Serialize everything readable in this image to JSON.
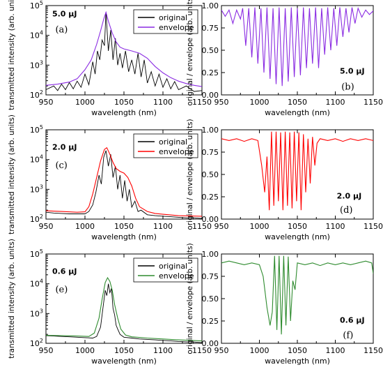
{
  "colors": {
    "original": "#000000",
    "envelope_a": "#8a2be2",
    "envelope_c": "#ff0000",
    "envelope_e": "#2e8b2e"
  },
  "chart_data": [
    {
      "id": "a",
      "type": "line",
      "panel_label": "(a)",
      "energy_label": "5.0 μJ",
      "xlabel": "wavelength (nm)",
      "ylabel": "transmitted intensity (arb. units)",
      "xlim": [
        950,
        1150
      ],
      "ylim": [
        100,
        100000
      ],
      "yscale": "log",
      "x_ticks": [
        "950",
        "1000",
        "1050",
        "1100",
        "1150"
      ],
      "y_ticks": [
        "10^2",
        "10^3",
        "10^4",
        "10^5"
      ],
      "legend": {
        "position": "top-right"
      },
      "series": [
        {
          "name": "original",
          "color": "#000000",
          "x": [
            950,
            960,
            965,
            970,
            975,
            980,
            985,
            990,
            995,
            1000,
            1005,
            1010,
            1013,
            1016,
            1019,
            1022,
            1025,
            1027,
            1030,
            1033,
            1036,
            1039,
            1042,
            1045,
            1048,
            1052,
            1056,
            1060,
            1064,
            1068,
            1072,
            1076,
            1080,
            1085,
            1090,
            1095,
            1100,
            1105,
            1110,
            1115,
            1120,
            1130,
            1140,
            1150
          ],
          "y": [
            150,
            200,
            140,
            230,
            150,
            260,
            160,
            290,
            180,
            500,
            220,
            1300,
            500,
            3000,
            1500,
            7000,
            4500,
            60000,
            3000,
            15000,
            1500,
            8000,
            1000,
            2500,
            800,
            3000,
            600,
            1500,
            500,
            2500,
            400,
            1500,
            250,
            600,
            200,
            500,
            180,
            350,
            160,
            280,
            150,
            200,
            130,
            140
          ]
        },
        {
          "name": "envelope",
          "color": "#8a2be2",
          "x": [
            950,
            965,
            980,
            990,
            1000,
            1008,
            1015,
            1020,
            1024,
            1027,
            1030,
            1035,
            1040,
            1045,
            1050,
            1060,
            1070,
            1080,
            1090,
            1100,
            1110,
            1120,
            1130,
            1140,
            1150
          ],
          "y": [
            210,
            230,
            270,
            350,
            700,
            1500,
            5000,
            14000,
            35000,
            60000,
            30000,
            12000,
            6000,
            4000,
            3500,
            3000,
            2500,
            1700,
            900,
            550,
            380,
            290,
            240,
            210,
            190
          ]
        }
      ]
    },
    {
      "id": "b",
      "type": "line",
      "panel_label": "(b)",
      "energy_label": "5.0 μJ",
      "xlabel": "wavelength (nm)",
      "ylabel": "original / envelope (arb. units)",
      "xlim": [
        950,
        1150
      ],
      "ylim": [
        0,
        1
      ],
      "x_ticks": [
        "950",
        "1000",
        "1050",
        "1100",
        "1150"
      ],
      "y_ticks": [
        "0.00",
        "0.25",
        "0.50",
        "0.75",
        "1.00"
      ],
      "series": [
        {
          "name": "",
          "color": "#8a2be2",
          "x": [
            950,
            955,
            960,
            965,
            970,
            975,
            978,
            982,
            986,
            990,
            994,
            998,
            1002,
            1006,
            1010,
            1014,
            1018,
            1022,
            1026,
            1030,
            1034,
            1038,
            1042,
            1046,
            1050,
            1054,
            1058,
            1062,
            1066,
            1070,
            1074,
            1078,
            1082,
            1086,
            1090,
            1094,
            1098,
            1102,
            1106,
            1110,
            1114,
            1118,
            1122,
            1126,
            1130,
            1135,
            1140,
            1145,
            1150
          ],
          "y": [
            0.95,
            0.88,
            0.95,
            0.8,
            0.95,
            0.85,
            0.97,
            0.55,
            0.97,
            0.42,
            0.98,
            0.35,
            0.97,
            0.25,
            0.98,
            0.18,
            0.97,
            0.12,
            0.98,
            0.1,
            0.97,
            0.15,
            0.98,
            0.2,
            0.97,
            0.22,
            0.98,
            0.3,
            0.97,
            0.35,
            0.98,
            0.3,
            0.97,
            0.45,
            0.98,
            0.5,
            0.97,
            0.55,
            0.98,
            0.65,
            0.97,
            0.7,
            0.98,
            0.8,
            0.97,
            0.87,
            0.95,
            0.9,
            0.94
          ]
        }
      ]
    },
    {
      "id": "c",
      "type": "line",
      "panel_label": "(c)",
      "energy_label": "2.0 μJ",
      "xlabel": "wavelength (nm)",
      "ylabel": "transmitted intensity (arb. units)",
      "xlim": [
        950,
        1150
      ],
      "ylim": [
        100,
        100000
      ],
      "yscale": "log",
      "x_ticks": [
        "950",
        "1000",
        "1050",
        "1100",
        "1150"
      ],
      "y_ticks": [
        "10^2",
        "10^3",
        "10^4",
        "10^5"
      ],
      "legend": {
        "position": "top-right"
      },
      "series": [
        {
          "name": "original",
          "color": "#000000",
          "x": [
            950,
            960,
            970,
            980,
            990,
            1000,
            1005,
            1010,
            1014,
            1018,
            1021,
            1024,
            1027,
            1030,
            1033,
            1036,
            1039,
            1042,
            1045,
            1048,
            1051,
            1054,
            1057,
            1060,
            1064,
            1068,
            1072,
            1080,
            1090,
            1100,
            1110,
            1120,
            1130,
            1140,
            1150
          ],
          "y": [
            170,
            160,
            155,
            150,
            150,
            150,
            180,
            300,
            800,
            3000,
            1500,
            12000,
            20000,
            6000,
            15000,
            2500,
            6000,
            1000,
            3000,
            500,
            2000,
            400,
            1000,
            250,
            400,
            180,
            200,
            140,
            130,
            125,
            120,
            115,
            110,
            110,
            105
          ]
        },
        {
          "name": "envelope",
          "color": "#ff0000",
          "x": [
            950,
            970,
            990,
            1000,
            1005,
            1010,
            1015,
            1020,
            1025,
            1028,
            1032,
            1036,
            1040,
            1045,
            1050,
            1055,
            1060,
            1065,
            1070,
            1080,
            1090,
            1100,
            1120,
            1150
          ],
          "y": [
            190,
            180,
            170,
            175,
            260,
            700,
            2500,
            9000,
            22000,
            25000,
            15000,
            8000,
            5000,
            4000,
            3500,
            2500,
            1300,
            500,
            260,
            180,
            155,
            145,
            130,
            125
          ]
        }
      ]
    },
    {
      "id": "d",
      "type": "line",
      "panel_label": "(d)",
      "energy_label": "2.0 μJ",
      "xlabel": "wavelength (nm)",
      "ylabel": "original / envelope (arb. units)",
      "xlim": [
        950,
        1150
      ],
      "ylim": [
        0,
        1
      ],
      "x_ticks": [
        "950",
        "1000",
        "1050",
        "1100",
        "1150"
      ],
      "y_ticks": [
        "0.00",
        "0.25",
        "0.50",
        "0.75",
        "1.00"
      ],
      "series": [
        {
          "name": "",
          "color": "#ff0000",
          "x": [
            950,
            960,
            970,
            980,
            990,
            998,
            1003,
            1007,
            1010,
            1013,
            1016,
            1019,
            1022,
            1025,
            1028,
            1031,
            1034,
            1037,
            1040,
            1043,
            1046,
            1049,
            1052,
            1055,
            1058,
            1061,
            1064,
            1067,
            1070,
            1073,
            1076,
            1080,
            1090,
            1100,
            1110,
            1120,
            1130,
            1140,
            1150
          ],
          "y": [
            0.9,
            0.88,
            0.9,
            0.87,
            0.9,
            0.88,
            0.6,
            0.3,
            0.7,
            0.1,
            0.98,
            0.15,
            0.98,
            0.2,
            0.97,
            0.1,
            0.98,
            0.15,
            0.97,
            0.12,
            0.98,
            0.2,
            0.97,
            0.1,
            0.95,
            0.3,
            0.9,
            0.4,
            0.92,
            0.6,
            0.85,
            0.9,
            0.88,
            0.9,
            0.87,
            0.9,
            0.88,
            0.9,
            0.88
          ]
        }
      ]
    },
    {
      "id": "e",
      "type": "line",
      "panel_label": "(e)",
      "energy_label": "0.6 μJ",
      "xlabel": "wavelength (nm)",
      "ylabel": "transmitted intensity (arb. units)",
      "xlim": [
        950,
        1150
      ],
      "ylim": [
        100,
        100000
      ],
      "yscale": "log",
      "x_ticks": [
        "950",
        "1000",
        "1050",
        "1100",
        "1150"
      ],
      "y_ticks": [
        "10^2",
        "10^3",
        "10^4",
        "10^5"
      ],
      "legend": {
        "position": "top-right"
      },
      "series": [
        {
          "name": "original",
          "color": "#000000",
          "x": [
            950,
            960,
            970,
            980,
            990,
            1000,
            1010,
            1015,
            1020,
            1023,
            1026,
            1028,
            1030,
            1032,
            1034,
            1036,
            1038,
            1040,
            1042,
            1045,
            1050,
            1060,
            1070,
            1080,
            1090,
            1100,
            1110,
            1120,
            1130,
            1140,
            1150
          ],
          "y": [
            180,
            175,
            170,
            165,
            160,
            155,
            150,
            170,
            350,
            1500,
            6000,
            4000,
            10000,
            5000,
            7000,
            1500,
            900,
            400,
            300,
            200,
            160,
            150,
            140,
            135,
            130,
            125,
            120,
            115,
            112,
            110,
            105
          ]
        },
        {
          "name": "envelope",
          "color": "#2e8b2e",
          "x": [
            950,
            970,
            990,
            1005,
            1012,
            1018,
            1022,
            1026,
            1029,
            1032,
            1035,
            1038,
            1042,
            1046,
            1052,
            1060,
            1080,
            1100,
            1120,
            1150
          ],
          "y": [
            185,
            180,
            175,
            170,
            220,
            700,
            3000,
            11000,
            16000,
            12000,
            6000,
            2000,
            700,
            300,
            190,
            165,
            150,
            140,
            130,
            120
          ]
        }
      ]
    },
    {
      "id": "f",
      "type": "line",
      "panel_label": "(f)",
      "energy_label": "0.6 μJ",
      "xlabel": "wavelength (nm)",
      "ylabel": "original / envelope (arb. units)",
      "xlim": [
        950,
        1150
      ],
      "ylim": [
        0,
        1
      ],
      "x_ticks": [
        "950",
        "1000",
        "1050",
        "1100",
        "1150"
      ],
      "y_ticks": [
        "0.00",
        "0.25",
        "0.50",
        "0.75",
        "1.00"
      ],
      "series": [
        {
          "name": "",
          "color": "#2e8b2e",
          "x": [
            950,
            960,
            970,
            980,
            990,
            1000,
            1005,
            1010,
            1014,
            1017,
            1020,
            1023,
            1026,
            1029,
            1032,
            1035,
            1038,
            1041,
            1044,
            1047,
            1050,
            1060,
            1070,
            1080,
            1090,
            1100,
            1110,
            1120,
            1130,
            1140,
            1148,
            1150
          ],
          "y": [
            0.9,
            0.92,
            0.9,
            0.88,
            0.9,
            0.88,
            0.75,
            0.4,
            0.2,
            0.35,
            0.98,
            0.15,
            0.98,
            0.1,
            0.98,
            0.2,
            0.97,
            0.25,
            0.7,
            0.6,
            0.9,
            0.88,
            0.9,
            0.87,
            0.9,
            0.88,
            0.9,
            0.88,
            0.9,
            0.92,
            0.9,
            0.78
          ]
        }
      ]
    }
  ]
}
